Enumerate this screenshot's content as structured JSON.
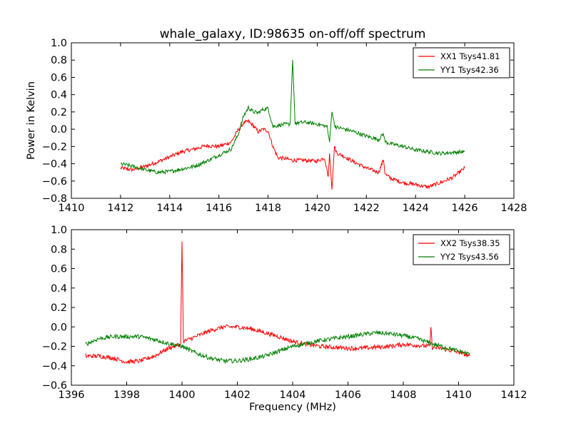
{
  "figure": {
    "title": "whale_galaxy, ID:98635 on-off/off spectrum"
  },
  "chart_data": [
    {
      "type": "line",
      "title": "whale_galaxy, ID:98635 on-off/off spectrum",
      "xlabel": "",
      "ylabel": "Power in Kelvin",
      "xlim": [
        1410,
        1428
      ],
      "ylim": [
        -0.8,
        1.0
      ],
      "xticks": [
        1410,
        1412,
        1414,
        1416,
        1418,
        1420,
        1422,
        1424,
        1426,
        1428
      ],
      "yticks": [
        -0.8,
        -0.6,
        -0.4,
        -0.2,
        0.0,
        0.2,
        0.4,
        0.6,
        0.8,
        1.0
      ],
      "legend": "top-right",
      "grid": false,
      "series": [
        {
          "name": "XX1 Tsys41.81",
          "color": "#ff0000",
          "x": [
            1412,
            1412.5,
            1413,
            1413.5,
            1414,
            1414.5,
            1415,
            1415.5,
            1416,
            1416.5,
            1416.8,
            1417,
            1417.2,
            1417.4,
            1417.6,
            1417.8,
            1418,
            1418.2,
            1418.4,
            1418.7,
            1419,
            1419.5,
            1420,
            1420.3,
            1420.45,
            1420.5,
            1420.6,
            1420.7,
            1420.8,
            1421,
            1421.5,
            1422,
            1422.5,
            1422.7,
            1422.75,
            1422.8,
            1423,
            1423.5,
            1424,
            1424.5,
            1425,
            1425.5,
            1426
          ],
          "y": [
            -0.45,
            -0.47,
            -0.43,
            -0.38,
            -0.32,
            -0.26,
            -0.23,
            -0.19,
            -0.2,
            -0.15,
            0.0,
            0.07,
            0.09,
            0.04,
            -0.03,
            0.0,
            -0.02,
            -0.2,
            -0.33,
            -0.34,
            -0.36,
            -0.36,
            -0.37,
            -0.33,
            -0.55,
            -0.28,
            -0.7,
            -0.2,
            -0.28,
            -0.3,
            -0.38,
            -0.45,
            -0.5,
            -0.35,
            -0.5,
            -0.53,
            -0.57,
            -0.62,
            -0.64,
            -0.67,
            -0.62,
            -0.56,
            -0.45
          ]
        },
        {
          "name": "YY1 Tsys42.36",
          "color": "#008000",
          "x": [
            1412,
            1412.5,
            1413,
            1413.5,
            1414,
            1414.5,
            1415,
            1415.5,
            1416,
            1416.5,
            1416.8,
            1417,
            1417.2,
            1417.4,
            1417.6,
            1417.8,
            1418,
            1418.2,
            1418.5,
            1418.9,
            1419.0,
            1419.1,
            1419.5,
            1420,
            1420.4,
            1420.5,
            1420.6,
            1420.7,
            1420.8,
            1421,
            1421.5,
            1422,
            1422.5,
            1422.7,
            1422.75,
            1422.8,
            1423,
            1423.5,
            1424,
            1424.5,
            1425,
            1425.5,
            1426
          ],
          "y": [
            -0.4,
            -0.43,
            -0.47,
            -0.5,
            -0.49,
            -0.46,
            -0.43,
            -0.37,
            -0.3,
            -0.23,
            -0.05,
            0.15,
            0.25,
            0.2,
            0.19,
            0.23,
            0.24,
            0.03,
            0.05,
            0.06,
            0.8,
            0.07,
            0.08,
            0.06,
            0.03,
            -0.15,
            0.22,
            0.05,
            0.02,
            0.01,
            -0.03,
            -0.08,
            -0.12,
            -0.05,
            -0.14,
            -0.15,
            -0.17,
            -0.2,
            -0.24,
            -0.26,
            -0.28,
            -0.27,
            -0.26
          ]
        }
      ]
    },
    {
      "type": "line",
      "title": "",
      "xlabel": "Frequency (MHz)",
      "ylabel": "",
      "xlim": [
        1396,
        1412
      ],
      "ylim": [
        -0.6,
        1.0
      ],
      "xticks": [
        1396,
        1398,
        1400,
        1402,
        1404,
        1406,
        1408,
        1410,
        1412
      ],
      "yticks": [
        -0.6,
        -0.4,
        -0.2,
        0.0,
        0.2,
        0.4,
        0.6,
        0.8,
        1.0
      ],
      "legend": "top-right",
      "grid": false,
      "series": [
        {
          "name": "XX2 Tsys38.35",
          "color": "#ff0000",
          "x": [
            1396.5,
            1397,
            1397.5,
            1398,
            1398.5,
            1399,
            1399.5,
            1399.95,
            1400.0,
            1400.05,
            1400.5,
            1401,
            1401.5,
            1402,
            1402.5,
            1403,
            1403.5,
            1404,
            1404.5,
            1405,
            1405.5,
            1406,
            1406.5,
            1407,
            1407.5,
            1408,
            1408.5,
            1408.95,
            1409.0,
            1409.05,
            1409.5,
            1410,
            1410.4
          ],
          "y": [
            -0.3,
            -0.3,
            -0.32,
            -0.36,
            -0.35,
            -0.3,
            -0.22,
            -0.18,
            0.88,
            -0.15,
            -0.1,
            -0.04,
            0.0,
            0.0,
            -0.02,
            -0.06,
            -0.1,
            -0.15,
            -0.18,
            -0.2,
            -0.21,
            -0.22,
            -0.22,
            -0.21,
            -0.2,
            -0.18,
            -0.19,
            -0.2,
            -0.02,
            -0.21,
            -0.23,
            -0.26,
            -0.3
          ]
        },
        {
          "name": "YY2 Tsys43.56",
          "color": "#008000",
          "x": [
            1396.5,
            1397,
            1397.5,
            1398,
            1398.5,
            1399,
            1399.5,
            1400,
            1400.5,
            1401,
            1401.5,
            1402,
            1402.5,
            1403,
            1403.5,
            1404,
            1404.5,
            1405,
            1405.5,
            1406,
            1406.5,
            1407,
            1407.5,
            1408,
            1408.5,
            1409,
            1409.5,
            1410,
            1410.4
          ],
          "y": [
            -0.18,
            -0.12,
            -0.1,
            -0.1,
            -0.1,
            -0.13,
            -0.17,
            -0.2,
            -0.27,
            -0.32,
            -0.35,
            -0.35,
            -0.33,
            -0.3,
            -0.25,
            -0.2,
            -0.17,
            -0.14,
            -0.12,
            -0.1,
            -0.08,
            -0.06,
            -0.07,
            -0.09,
            -0.12,
            -0.17,
            -0.21,
            -0.25,
            -0.28
          ]
        }
      ]
    }
  ]
}
